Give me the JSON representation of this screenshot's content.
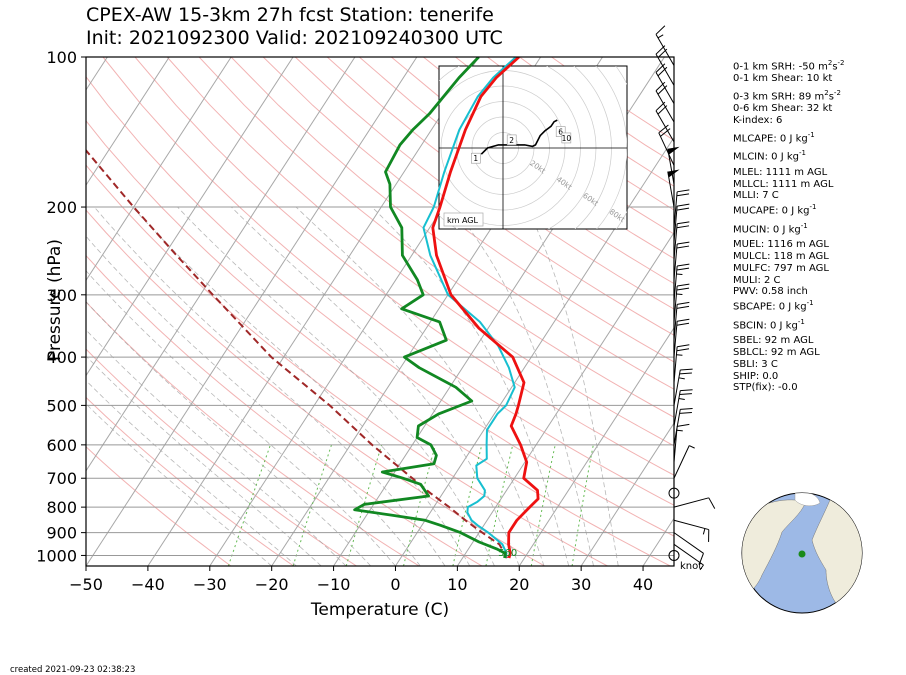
{
  "title_line1": "CPEX-AW 15-3km  27h fcst  Station: tenerife",
  "title_line2": "Init: 2021092300  Valid: 202109240300 UTC",
  "created": "created 2021-09-23 02:38:23",
  "colors": {
    "temperature": "#ee1111",
    "dewpoint": "#118822",
    "wetbulb": "#17bfd0",
    "parcel": "#a02828",
    "dry_adiabat": "#f2b3b3",
    "moist_adiabat": "#9a9a9a",
    "mixing_ratio": "#66bb55",
    "isotherm": "#a8a8a8",
    "ocean": "#9db9e6",
    "land": "#efecdc",
    "station": "#1a8a1a"
  },
  "stats": [
    {
      "label": "0-1 km SRH: -50 m",
      "sup1": "2",
      "mid": "s",
      "sup2": "-2"
    },
    {
      "label": "0-1 km Shear: 10 kt"
    },
    {
      "label": "0-3 km SRH: 89 m",
      "sup1": "2",
      "mid": "s",
      "sup2": "-2",
      "gap": true
    },
    {
      "label": "0-6 km Shear: 32 kt"
    },
    {
      "label": "K-index: 6"
    },
    {
      "label": "MLCAPE: 0 J kg",
      "sup1": "-1",
      "gap": true
    },
    {
      "label": "MLCIN: 0 J kg",
      "sup1": "-1",
      "gap": true
    },
    {
      "label": "MLEL: 1111 m AGL",
      "gap": true
    },
    {
      "label": "MLLCL: 1111 m AGL"
    },
    {
      "label": "MLLI: 7 C"
    },
    {
      "label": "MUCAPE: 0 J kg",
      "sup1": "-1"
    },
    {
      "label": "MUCIN: 0 J kg",
      "sup1": "-1",
      "gap": true
    },
    {
      "label": "MUEL: 1116 m AGL",
      "gap": true
    },
    {
      "label": "MULCL: 118 m AGL"
    },
    {
      "label": "MULFC: 797 m AGL"
    },
    {
      "label": "MULI: 2 C"
    },
    {
      "label": "PWV: 0.58 inch"
    },
    {
      "label": "SBCAPE: 0 J kg",
      "sup1": "-1"
    },
    {
      "label": "SBCIN: 0 J kg",
      "sup1": "-1",
      "gap": true
    },
    {
      "label": "SBEL: 92 m AGL",
      "gap": true
    },
    {
      "label": "SBLCL: 92 m AGL"
    },
    {
      "label": "SBLI: 3 C"
    },
    {
      "label": "SHIP: 0.0"
    },
    {
      "label": "STP(fix): -0.0"
    }
  ],
  "hodograph": {
    "label": "km AGL",
    "ring_labels": [
      "20kt",
      "40kt",
      "60kt",
      "80kt"
    ],
    "height_markers": [
      "1",
      "2",
      "6",
      "10"
    ],
    "trace": [
      [
        -14,
        -4
      ],
      [
        -10,
        0
      ],
      [
        -3,
        2
      ],
      [
        4,
        2
      ],
      [
        9,
        2
      ],
      [
        14,
        2
      ],
      [
        19,
        1
      ],
      [
        21,
        2
      ],
      [
        24,
        8
      ],
      [
        27,
        11
      ],
      [
        31,
        14
      ],
      [
        33,
        17
      ],
      [
        35,
        18
      ]
    ]
  },
  "barbs_unit": "knot",
  "sfc_temp_label": "560",
  "chart_data": {
    "type": "skew-T log-P",
    "xlabel": "Temperature (C)",
    "ylabel": "Pressure (hPa)",
    "xlim": [
      -50,
      45
    ],
    "ylim": [
      1050,
      100
    ],
    "xticks": [
      -50,
      -40,
      -30,
      -20,
      -10,
      0,
      10,
      20,
      30,
      40
    ],
    "xtick_labels": [
      "−50",
      "−40",
      "−30",
      "−20",
      "−10",
      "0",
      "10",
      "20",
      "30",
      "40"
    ],
    "yticks": [
      100,
      200,
      300,
      400,
      500,
      600,
      700,
      800,
      900,
      1000
    ],
    "ytick_labels": [
      "100",
      "200",
      "300",
      "400",
      "500",
      "600",
      "700",
      "800",
      "900",
      "1000"
    ],
    "series": [
      {
        "key": "temperature",
        "values": [
          [
            1012,
            17.5
          ],
          [
            990,
            17.2
          ],
          [
            950,
            16.0
          ],
          [
            900,
            14.8
          ],
          [
            850,
            14.8
          ],
          [
            800,
            15.5
          ],
          [
            770,
            16.0
          ],
          [
            740,
            15.0
          ],
          [
            700,
            11.5
          ],
          [
            650,
            10.3
          ],
          [
            600,
            7.5
          ],
          [
            550,
            4.0
          ],
          [
            520,
            3.5
          ],
          [
            500,
            3.0
          ],
          [
            450,
            1.5
          ],
          [
            400,
            -3.0
          ],
          [
            350,
            -11.5
          ],
          [
            300,
            -19.5
          ],
          [
            250,
            -26.0
          ],
          [
            220,
            -29.5
          ],
          [
            200,
            -30.5
          ],
          [
            170,
            -32.5
          ],
          [
            140,
            -34.5
          ],
          [
            120,
            -35.5
          ],
          [
            110,
            -35.0
          ],
          [
            100,
            -33.5
          ]
        ]
      },
      {
        "key": "dewpoint",
        "values": [
          [
            1012,
            16.8
          ],
          [
            990,
            16.4
          ],
          [
            970,
            14.5
          ],
          [
            940,
            11.0
          ],
          [
            900,
            7.0
          ],
          [
            870,
            3.0
          ],
          [
            850,
            0.0
          ],
          [
            830,
            -6.0
          ],
          [
            810,
            -12.5
          ],
          [
            790,
            -11.5
          ],
          [
            760,
            -2.0
          ],
          [
            720,
            -4.5
          ],
          [
            700,
            -8.0
          ],
          [
            680,
            -12.0
          ],
          [
            655,
            -4.5
          ],
          [
            630,
            -5.0
          ],
          [
            600,
            -7.0
          ],
          [
            580,
            -10.0
          ],
          [
            550,
            -11.0
          ],
          [
            520,
            -9.0
          ],
          [
            490,
            -5.0
          ],
          [
            460,
            -9.0
          ],
          [
            420,
            -17.0
          ],
          [
            400,
            -20.5
          ],
          [
            370,
            -15.5
          ],
          [
            340,
            -18.5
          ],
          [
            320,
            -26.0
          ],
          [
            300,
            -24.0
          ],
          [
            280,
            -26.5
          ],
          [
            250,
            -31.5
          ],
          [
            220,
            -34.5
          ],
          [
            200,
            -38.5
          ],
          [
            180,
            -41.0
          ],
          [
            170,
            -43.0
          ],
          [
            150,
            -43.5
          ],
          [
            140,
            -43.0
          ],
          [
            130,
            -42.0
          ],
          [
            110,
            -41.0
          ],
          [
            100,
            -40.0
          ]
        ]
      },
      {
        "key": "wetbulb",
        "values": [
          [
            1012,
            16.9
          ],
          [
            990,
            16.6
          ],
          [
            950,
            15.0
          ],
          [
            900,
            11.5
          ],
          [
            870,
            9.0
          ],
          [
            850,
            7.5
          ],
          [
            820,
            6.0
          ],
          [
            800,
            5.5
          ],
          [
            780,
            6.5
          ],
          [
            760,
            7.0
          ],
          [
            740,
            6.5
          ],
          [
            700,
            4.0
          ],
          [
            660,
            2.5
          ],
          [
            640,
            3.5
          ],
          [
            600,
            2.0
          ],
          [
            560,
            0.5
          ],
          [
            520,
            0.5
          ],
          [
            500,
            1.0
          ],
          [
            460,
            0.5
          ],
          [
            420,
            -2.5
          ],
          [
            380,
            -6.5
          ],
          [
            340,
            -12.0
          ],
          [
            300,
            -20.0
          ],
          [
            250,
            -27.0
          ],
          [
            220,
            -31.0
          ],
          [
            200,
            -31.5
          ],
          [
            170,
            -33.5
          ],
          [
            140,
            -35.5
          ],
          [
            120,
            -36.0
          ],
          [
            110,
            -35.5
          ],
          [
            100,
            -34.0
          ]
        ]
      },
      {
        "key": "parcel",
        "values": [
          [
            1012,
            17.2
          ],
          [
            950,
            14.5
          ],
          [
            900,
            10.5
          ],
          [
            850,
            6.5
          ],
          [
            800,
            2.5
          ],
          [
            750,
            -2.0
          ],
          [
            700,
            -6.5
          ],
          [
            600,
            -16.5
          ],
          [
            500,
            -27.5
          ],
          [
            400,
            -42.0
          ],
          [
            300,
            -58.0
          ],
          [
            250,
            -68.0
          ],
          [
            200,
            -80.0
          ],
          [
            150,
            -95.0
          ],
          [
            100,
            -115.0
          ]
        ]
      }
    ],
    "wind_barbs": [
      [
        1000,
        85,
        2
      ],
      [
        950,
        125,
        5
      ],
      [
        900,
        125,
        12
      ],
      [
        850,
        105,
        14
      ],
      [
        800,
        75,
        12
      ],
      [
        750,
        0,
        0
      ],
      [
        700,
        25,
        6
      ],
      [
        650,
        5,
        14
      ],
      [
        600,
        10,
        22
      ],
      [
        550,
        10,
        24
      ],
      [
        500,
        10,
        26
      ],
      [
        450,
        5,
        24
      ],
      [
        400,
        5,
        22
      ],
      [
        370,
        5,
        22
      ],
      [
        340,
        5,
        24
      ],
      [
        310,
        5,
        24
      ],
      [
        280,
        5,
        22
      ],
      [
        255,
        5,
        20
      ],
      [
        235,
        5,
        18
      ],
      [
        220,
        5,
        20
      ],
      [
        200,
        350,
        52
      ],
      [
        180,
        350,
        52
      ],
      [
        165,
        335,
        18
      ],
      [
        148,
        330,
        22
      ],
      [
        135,
        330,
        22
      ],
      [
        124,
        330,
        20
      ],
      [
        114,
        330,
        18
      ],
      [
        104,
        330,
        16
      ]
    ]
  }
}
